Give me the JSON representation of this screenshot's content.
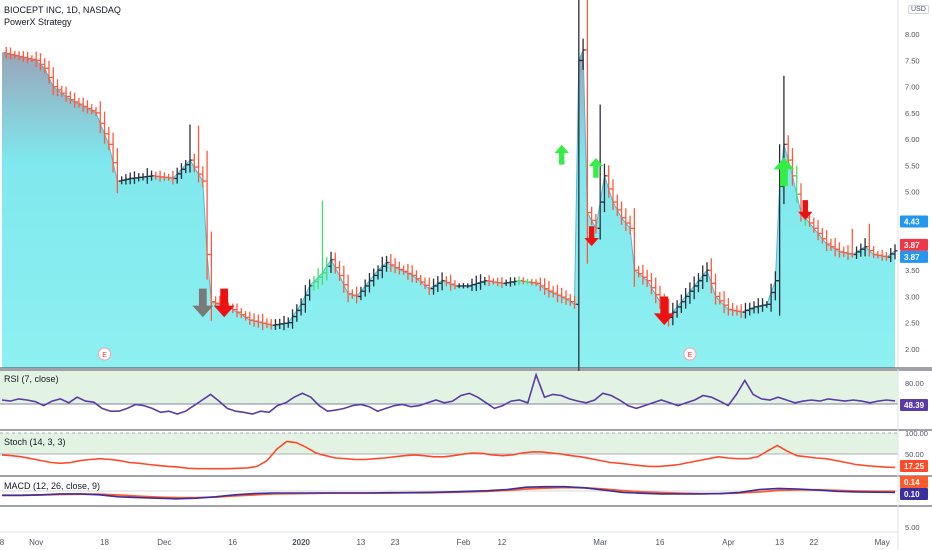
{
  "header": {
    "symbol_line": "BIOCEPT INC, 1D, NASDAQ",
    "strategy": "PowerX Strategy",
    "currency": "USD"
  },
  "colors": {
    "up_bar": "#2a2e39",
    "down_bar": "#ff5a3c",
    "green_bar": "#45e06a",
    "area_fill": "#7fe8ee",
    "area_line": "#5ab5d6",
    "rsi": "#5b3ba6",
    "stoch": "#ff4a2a",
    "macd": "#3b2ea0",
    "signal": "#ff5a2a",
    "arrow_up": "#33ee44",
    "arrow_down": "#ee1111",
    "arrow_gray": "#7a7a7a",
    "band": "#e3f3e3"
  },
  "chart_data": [
    {
      "type": "ohlc",
      "title": "BIOCEPT INC, 1D, NASDAQ",
      "ylim": [
        1.75,
        8.5
      ],
      "y_ticks": [
        "2.00",
        "2.50",
        "3.00",
        "3.50",
        "4.00",
        "4.50",
        "5.00",
        "5.50",
        "6.00",
        "6.50",
        "7.00",
        "7.50",
        "8.00"
      ],
      "x_labels": [
        "8",
        "Nov",
        "18",
        "Dec",
        "16",
        "2020",
        "13",
        "23",
        "Feb",
        "12",
        "Mar",
        "16",
        "Apr",
        "13",
        "22",
        "May"
      ],
      "x_label_days": [
        0,
        8,
        24,
        38,
        54,
        70,
        84,
        92,
        108,
        117,
        140,
        154,
        170,
        182,
        190,
        206
      ],
      "price_badges": [
        {
          "label": "4.43",
          "color": "#2196f3"
        },
        {
          "label": "3.87",
          "color": "#f23645"
        },
        {
          "label": "3.87",
          "color": "#2196f3"
        }
      ],
      "earnings_markers": [
        {
          "label": "E",
          "day": 24
        },
        {
          "label": "E",
          "day": 161
        }
      ],
      "signal_arrows": [
        {
          "dir": "down",
          "color": "gray",
          "day": 47,
          "price": 2.95
        },
        {
          "dir": "down",
          "color": "red",
          "day": 52,
          "price": 2.95
        },
        {
          "dir": "up",
          "color": "green",
          "day": 131,
          "price": 5.65
        },
        {
          "dir": "down",
          "color": "red",
          "day": 138,
          "price": 4.2
        },
        {
          "dir": "up",
          "color": "green",
          "day": 139,
          "price": 5.4
        },
        {
          "dir": "down",
          "color": "red",
          "day": 155,
          "price": 2.8
        },
        {
          "dir": "up",
          "color": "green",
          "day": 183,
          "price": 5.3
        },
        {
          "dir": "down",
          "color": "red",
          "day": 188,
          "price": 4.7
        }
      ],
      "waypoints": [
        [
          0,
          7.65
        ],
        [
          8,
          7.5
        ],
        [
          10,
          7.35
        ],
        [
          12,
          7.0
        ],
        [
          16,
          6.75
        ],
        [
          22,
          6.5
        ],
        [
          25,
          5.9
        ],
        [
          27,
          5.2
        ],
        [
          30,
          5.25
        ],
        [
          35,
          5.3
        ],
        [
          40,
          5.25
        ],
        [
          44,
          5.6
        ],
        [
          47,
          5.2
        ],
        [
          48,
          3.8
        ],
        [
          49,
          2.9
        ],
        [
          54,
          2.75
        ],
        [
          58,
          2.55
        ],
        [
          63,
          2.45
        ],
        [
          67,
          2.5
        ],
        [
          70,
          2.85
        ],
        [
          72,
          3.2
        ],
        [
          75,
          3.45
        ],
        [
          77,
          3.7
        ],
        [
          79,
          3.4
        ],
        [
          81,
          3.05
        ],
        [
          83,
          3.0
        ],
        [
          85,
          3.2
        ],
        [
          88,
          3.5
        ],
        [
          90,
          3.65
        ],
        [
          92,
          3.55
        ],
        [
          96,
          3.4
        ],
        [
          100,
          3.15
        ],
        [
          103,
          3.3
        ],
        [
          106,
          3.2
        ],
        [
          109,
          3.2
        ],
        [
          113,
          3.3
        ],
        [
          117,
          3.25
        ],
        [
          121,
          3.3
        ],
        [
          125,
          3.25
        ],
        [
          128,
          3.1
        ],
        [
          132,
          2.95
        ],
        [
          134,
          2.85
        ],
        [
          135,
          7.5
        ],
        [
          136,
          7.7
        ],
        [
          137,
          4.6
        ],
        [
          139,
          4.3
        ],
        [
          141,
          5.3
        ],
        [
          143,
          4.8
        ],
        [
          145,
          4.5
        ],
        [
          147,
          4.3
        ],
        [
          148,
          3.5
        ],
        [
          151,
          3.3
        ],
        [
          154,
          2.9
        ],
        [
          156,
          2.6
        ],
        [
          159,
          2.9
        ],
        [
          162,
          3.2
        ],
        [
          165,
          3.5
        ],
        [
          167,
          3.0
        ],
        [
          170,
          2.75
        ],
        [
          173,
          2.7
        ],
        [
          176,
          2.8
        ],
        [
          179,
          2.85
        ],
        [
          181,
          3.3
        ],
        [
          182,
          5.1
        ],
        [
          183,
          5.9
        ],
        [
          185,
          5.3
        ],
        [
          187,
          4.6
        ],
        [
          190,
          4.3
        ],
        [
          193,
          4.0
        ],
        [
          196,
          3.85
        ],
        [
          199,
          3.8
        ],
        [
          202,
          3.95
        ],
        [
          204,
          3.8
        ],
        [
          207,
          3.75
        ],
        [
          209,
          3.87
        ]
      ]
    },
    {
      "type": "line",
      "title": "RSI (7, close)",
      "y_ticks": [
        "80.00"
      ],
      "value_badge": {
        "label": "48.39",
        "color": "#5b3ba6"
      },
      "values": [
        50,
        48,
        52,
        50,
        47,
        40,
        48,
        52,
        45,
        55,
        48,
        46,
        35,
        30,
        30,
        35,
        42,
        40,
        35,
        28,
        30,
        25,
        30,
        40,
        50,
        60,
        48,
        35,
        30,
        28,
        25,
        30,
        28,
        40,
        45,
        55,
        62,
        55,
        40,
        30,
        32,
        35,
        40,
        42,
        38,
        30,
        35,
        40,
        42,
        38,
        40,
        45,
        50,
        45,
        48,
        58,
        62,
        55,
        45,
        35,
        40,
        48,
        50,
        45,
        95,
        55,
        60,
        58,
        52,
        48,
        45,
        50,
        62,
        58,
        50,
        40,
        35,
        40,
        45,
        50,
        45,
        40,
        45,
        50,
        58,
        55,
        48,
        40,
        60,
        85,
        60,
        52,
        50,
        55,
        50,
        45,
        48,
        50,
        48,
        52,
        50,
        48,
        50,
        48,
        45,
        48,
        50,
        48.39
      ],
      "ylim": [
        0,
        100
      ]
    },
    {
      "type": "line",
      "title": "Stoch (14, 3, 3)",
      "y_ticks": [
        "100.00",
        "50.00"
      ],
      "value_badge": {
        "label": "17.25",
        "color": "#ff4a2a"
      },
      "values": [
        50,
        48,
        45,
        40,
        35,
        30,
        28,
        30,
        35,
        38,
        40,
        38,
        35,
        30,
        28,
        25,
        22,
        20,
        18,
        15,
        14,
        14,
        14,
        14,
        15,
        16,
        20,
        35,
        65,
        85,
        82,
        70,
        55,
        48,
        42,
        40,
        38,
        38,
        40,
        42,
        45,
        48,
        50,
        48,
        45,
        45,
        48,
        52,
        55,
        54,
        50,
        48,
        50,
        55,
        58,
        58,
        55,
        52,
        48,
        45,
        40,
        35,
        30,
        28,
        25,
        22,
        20,
        20,
        22,
        25,
        30,
        35,
        40,
        45,
        42,
        40,
        40,
        45,
        60,
        75,
        60,
        48,
        45,
        42,
        40,
        35,
        30,
        25,
        22,
        20,
        18,
        17.25
      ],
      "ylim": [
        0,
        110
      ]
    },
    {
      "type": "line",
      "title": "MACD (12, 26, close, 9)",
      "y_ticks": [
        "5.00"
      ],
      "value_badges": [
        {
          "label": "0.14",
          "color": "#ff5a2a"
        },
        {
          "label": "0.10",
          "color": "#3b2ea0"
        }
      ],
      "series": [
        {
          "name": "MACD",
          "values": [
            0,
            0,
            0.02,
            0.05,
            0.05,
            0.02,
            -0.05,
            -0.08,
            -0.1,
            -0.12,
            -0.1,
            -0.05,
            0.02,
            0.06,
            0.08,
            0.08,
            0.08,
            0.08,
            0.08,
            0.08,
            0.09,
            0.09,
            0.1,
            0.12,
            0.14,
            0.16,
            0.2,
            0.28,
            0.3,
            0.3,
            0.26,
            0.18,
            0.1,
            0.07,
            0.05,
            0.05,
            0.05,
            0.06,
            0.1,
            0.2,
            0.24,
            0.22,
            0.18,
            0.14,
            0.12,
            0.11,
            0.1
          ]
        },
        {
          "name": "Signal",
          "values": [
            0,
            0,
            0.01,
            0.03,
            0.04,
            0.04,
            0.01,
            -0.03,
            -0.06,
            -0.08,
            -0.08,
            -0.06,
            -0.02,
            0.02,
            0.05,
            0.06,
            0.07,
            0.08,
            0.08,
            0.08,
            0.08,
            0.09,
            0.09,
            0.1,
            0.12,
            0.14,
            0.17,
            0.22,
            0.25,
            0.27,
            0.26,
            0.22,
            0.16,
            0.12,
            0.09,
            0.07,
            0.06,
            0.06,
            0.08,
            0.12,
            0.17,
            0.19,
            0.19,
            0.17,
            0.15,
            0.14,
            0.14
          ]
        }
      ],
      "ylim": [
        -0.3,
        0.6
      ]
    }
  ]
}
